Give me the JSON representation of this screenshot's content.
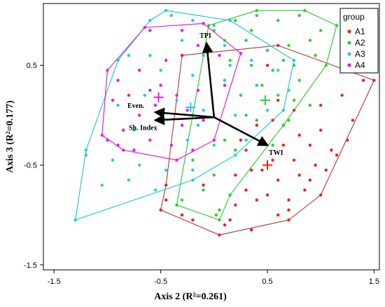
{
  "chart_data": {
    "type": "scatter",
    "xlabel": "Axis 2 (R²=0.261)",
    "ylabel": "Axis 3 (R²=0.177)",
    "xlim": [
      -1.6,
      1.55
    ],
    "ylim": [
      -1.55,
      1.12
    ],
    "xticks": [
      -1.5,
      -0.5,
      0.5,
      1.5
    ],
    "yticks": [
      -1.5,
      -0.5,
      0.5
    ],
    "grid": false,
    "legend": {
      "title": "group",
      "placement": "top-right"
    },
    "series": [
      {
        "name": "A1",
        "color": "#e8231c",
        "centroid": [
          0.5,
          -0.5
        ],
        "hull": [
          [
            -0.3,
            0.6
          ],
          [
            0.6,
            0.7
          ],
          [
            1.5,
            0.35
          ],
          [
            1.0,
            -0.8
          ],
          [
            0.7,
            -1.05
          ],
          [
            0.05,
            -1.2
          ],
          [
            -0.5,
            -0.95
          ],
          [
            -0.45,
            -0.7
          ]
        ],
        "points": [
          [
            0.4,
            -0.1
          ],
          [
            0.6,
            0.15
          ],
          [
            0.75,
            0.05
          ],
          [
            0.8,
            -0.2
          ],
          [
            1.0,
            0.1
          ],
          [
            1.2,
            0.2
          ],
          [
            1.4,
            0.35
          ],
          [
            0.9,
            -0.3
          ],
          [
            1.1,
            -0.35
          ],
          [
            1.15,
            -0.4
          ],
          [
            0.95,
            -0.5
          ],
          [
            1.05,
            -0.55
          ],
          [
            0.8,
            -0.6
          ],
          [
            0.6,
            -0.65
          ],
          [
            0.5,
            -0.8
          ],
          [
            0.4,
            -0.85
          ],
          [
            0.3,
            -0.75
          ],
          [
            0.2,
            -0.9
          ],
          [
            0.15,
            -1.05
          ],
          [
            0.1,
            -1.1
          ],
          [
            0.35,
            -1.15
          ],
          [
            0.6,
            -1.0
          ],
          [
            0.7,
            -0.95
          ],
          [
            0.85,
            -0.75
          ],
          [
            0.55,
            -0.45
          ],
          [
            0.45,
            -0.55
          ],
          [
            0.3,
            -0.35
          ],
          [
            0.65,
            -0.3
          ],
          [
            -0.45,
            -0.85
          ],
          [
            -0.3,
            -1.0
          ],
          [
            -0.2,
            -1.05
          ],
          [
            1.3,
            -0.05
          ],
          [
            1.25,
            -0.25
          ],
          [
            0.75,
            -0.45
          ],
          [
            0.9,
            -0.65
          ],
          [
            0.4,
            0.3
          ],
          [
            0.5,
            0.5
          ],
          [
            0.05,
            -0.95
          ],
          [
            0.2,
            -0.6
          ],
          [
            -0.1,
            -0.7
          ],
          [
            0.55,
            -0.05
          ],
          [
            1.0,
            -0.15
          ],
          [
            0.35,
            -0.55
          ],
          [
            0.7,
            -0.85
          ],
          [
            0.25,
            -0.25
          ]
        ]
      },
      {
        "name": "A2",
        "color": "#33cc33",
        "centroid": [
          0.48,
          0.15
        ],
        "hull": [
          [
            -0.05,
            0.9
          ],
          [
            0.4,
            1.05
          ],
          [
            0.85,
            1.05
          ],
          [
            1.15,
            0.9
          ],
          [
            1.05,
            0.5
          ],
          [
            0.65,
            -0.1
          ],
          [
            0.15,
            -0.8
          ],
          [
            0.05,
            -1.05
          ],
          [
            -0.35,
            -0.9
          ],
          [
            -0.2,
            0.0
          ],
          [
            -0.1,
            0.6
          ]
        ],
        "points": [
          [
            0.2,
            0.95
          ],
          [
            0.4,
            1.0
          ],
          [
            0.6,
            0.95
          ],
          [
            0.8,
            1.0
          ],
          [
            1.0,
            0.85
          ],
          [
            0.9,
            0.75
          ],
          [
            0.7,
            0.7
          ],
          [
            0.5,
            0.65
          ],
          [
            0.3,
            0.75
          ],
          [
            0.1,
            0.75
          ],
          [
            0.0,
            0.85
          ],
          [
            0.15,
            0.55
          ],
          [
            0.35,
            0.5
          ],
          [
            0.55,
            0.45
          ],
          [
            0.75,
            0.5
          ],
          [
            0.95,
            0.6
          ],
          [
            0.45,
            0.3
          ],
          [
            0.25,
            0.2
          ],
          [
            0.6,
            0.2
          ],
          [
            0.8,
            0.35
          ],
          [
            0.9,
            0.1
          ],
          [
            0.7,
            -0.05
          ],
          [
            0.4,
            -0.05
          ],
          [
            0.3,
            0.0
          ],
          [
            0.55,
            -0.3
          ],
          [
            0.0,
            -0.6
          ],
          [
            -0.1,
            -0.75
          ],
          [
            0.05,
            -0.95
          ],
          [
            0.02,
            -1.0
          ],
          [
            -0.3,
            -0.85
          ],
          [
            -0.2,
            -0.45
          ],
          [
            0.1,
            -0.25
          ],
          [
            0.65,
            0.55
          ],
          [
            0.35,
            0.85
          ],
          [
            0.75,
            0.15
          ],
          [
            0.2,
            -0.35
          ]
        ]
      },
      {
        "name": "A3",
        "color": "#22ccd8",
        "centroid": [
          -0.22,
          0.08
        ],
        "hull": [
          [
            -0.45,
            1.05
          ],
          [
            0.15,
            0.95
          ],
          [
            0.75,
            0.55
          ],
          [
            0.65,
            0.05
          ],
          [
            0.2,
            -0.4
          ],
          [
            -0.2,
            -0.65
          ],
          [
            -1.3,
            -1.05
          ],
          [
            -1.2,
            -0.35
          ],
          [
            -0.9,
            0.55
          ],
          [
            -0.6,
            0.95
          ]
        ],
        "points": [
          [
            -0.4,
            1.0
          ],
          [
            -0.2,
            0.95
          ],
          [
            0.0,
            0.9
          ],
          [
            0.1,
            0.7
          ],
          [
            0.35,
            0.55
          ],
          [
            0.6,
            0.45
          ],
          [
            0.7,
            0.25
          ],
          [
            -0.6,
            0.85
          ],
          [
            -0.8,
            0.6
          ],
          [
            -0.3,
            0.75
          ],
          [
            -0.1,
            0.6
          ],
          [
            -0.5,
            0.45
          ],
          [
            -0.2,
            0.4
          ],
          [
            0.1,
            0.35
          ],
          [
            0.4,
            0.3
          ],
          [
            -0.65,
            0.2
          ],
          [
            -0.35,
            0.15
          ],
          [
            -0.1,
            0.05
          ],
          [
            0.2,
            0.0
          ],
          [
            0.5,
            0.05
          ],
          [
            -0.9,
            0.1
          ],
          [
            -0.75,
            -0.15
          ],
          [
            -0.5,
            -0.05
          ],
          [
            -0.25,
            -0.25
          ],
          [
            0.0,
            -0.3
          ],
          [
            0.3,
            -0.25
          ],
          [
            -0.95,
            -0.45
          ],
          [
            -0.7,
            -0.5
          ],
          [
            -0.45,
            -0.55
          ],
          [
            -0.2,
            -0.55
          ],
          [
            -1.2,
            -0.4
          ],
          [
            -1.05,
            -0.7
          ],
          [
            -0.8,
            -0.65
          ],
          [
            -0.55,
            -0.75
          ],
          [
            -1.3,
            -1.05
          ],
          [
            -0.6,
            0.6
          ],
          [
            -0.15,
            -0.1
          ],
          [
            0.15,
            0.5
          ]
        ]
      },
      {
        "name": "A4",
        "color": "#e61ae6",
        "centroid": [
          -0.52,
          0.18
        ],
        "hull": [
          [
            -0.65,
            0.88
          ],
          [
            -0.1,
            0.92
          ],
          [
            0.25,
            0.62
          ],
          [
            0.0,
            -0.25
          ],
          [
            -0.35,
            -0.45
          ],
          [
            -0.85,
            -0.35
          ],
          [
            -1.05,
            -0.2
          ],
          [
            -1.0,
            0.45
          ]
        ],
        "points": [
          [
            -0.6,
            0.85
          ],
          [
            -0.3,
            0.85
          ],
          [
            -0.15,
            0.7
          ],
          [
            0.05,
            0.6
          ],
          [
            -0.45,
            0.55
          ],
          [
            -0.7,
            0.45
          ],
          [
            -0.9,
            0.35
          ],
          [
            -0.95,
            0.15
          ],
          [
            -0.8,
            0.2
          ],
          [
            -0.6,
            0.25
          ],
          [
            -0.5,
            0.3
          ],
          [
            -0.35,
            0.2
          ],
          [
            -0.15,
            0.25
          ],
          [
            0.1,
            0.3
          ],
          [
            -0.7,
            0.0
          ],
          [
            -0.5,
            -0.05
          ],
          [
            -0.3,
            -0.1
          ],
          [
            -0.1,
            -0.05
          ],
          [
            -0.85,
            -0.15
          ],
          [
            -0.6,
            -0.25
          ],
          [
            -0.4,
            -0.3
          ],
          [
            -0.2,
            -0.35
          ],
          [
            -1.0,
            -0.25
          ],
          [
            -0.9,
            -0.3
          ],
          [
            -0.75,
            -0.35
          ],
          [
            -0.25,
            0.05
          ],
          [
            -0.55,
            0.1
          ]
        ]
      }
    ],
    "vectors": [
      {
        "label": "TPI",
        "end": [
          -0.07,
          0.72
        ]
      },
      {
        "label": "Even.",
        "end": [
          -0.55,
          0.03
        ]
      },
      {
        "label": "Sh. Index",
        "end": [
          -0.55,
          -0.05
        ]
      },
      {
        "label": "TWI",
        "end": [
          0.5,
          -0.3
        ]
      }
    ],
    "vector_origin": [
      0.0,
      -0.02
    ]
  }
}
